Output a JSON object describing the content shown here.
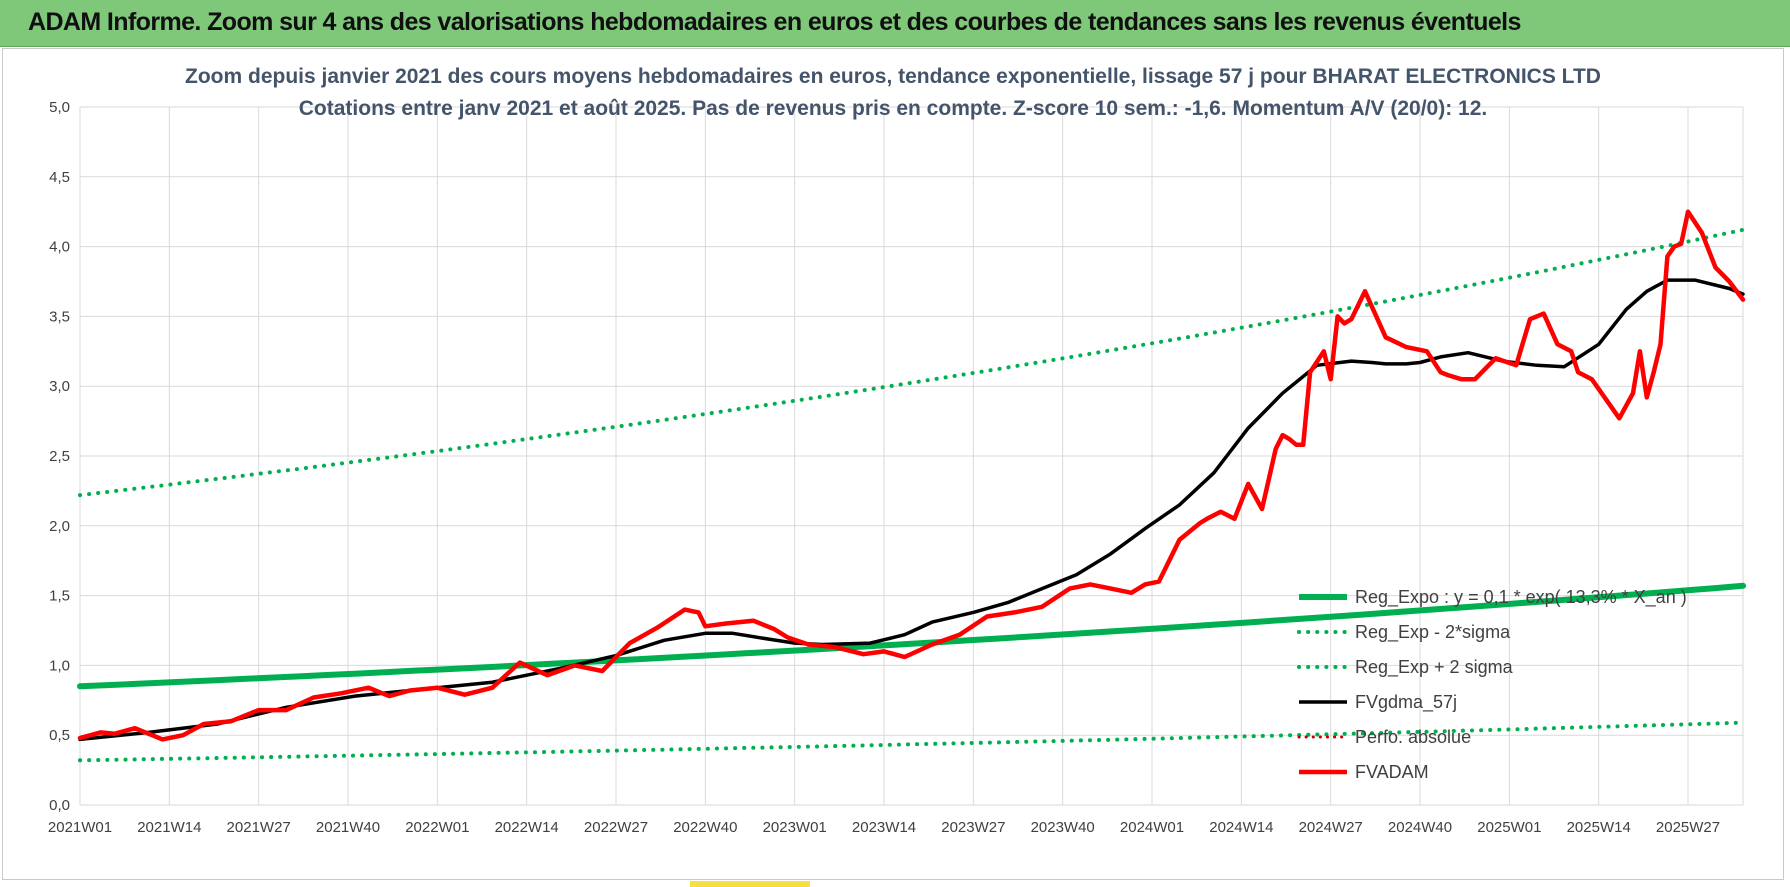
{
  "banner": {
    "title": "ADAM Informe. Zoom sur 4 ans des valorisations hebdomadaires en euros et des courbes de tendances sans les revenus éventuels"
  },
  "colors": {
    "banner_bg": "#7fc87a",
    "regression": "#00b050",
    "band": "#00b050",
    "smoothed": "#000000",
    "price": "#ff0000",
    "perfo": "#c00000",
    "grid": "#d9d9d9"
  },
  "chart_data": {
    "type": "line",
    "title_lines": [
      "Zoom depuis janvier 2021 des cours moyens hebdomadaires en euros, tendance exponentielle, lissage 57 j pour BHARAT ELECTRONICS LTD",
      "Cotations entre janv 2021 et août 2025. Pas de revenus pris en compte. Z-score 10 sem.: -1,6. Momentum A/V (20/0): 12."
    ],
    "x_tick_labels": [
      "2021W01",
      "2021W14",
      "2021W27",
      "2021W40",
      "2022W01",
      "2022W14",
      "2022W27",
      "2022W40",
      "2023W01",
      "2023W14",
      "2023W27",
      "2023W40",
      "2024W01",
      "2024W14",
      "2024W27",
      "2024W40",
      "2025W01",
      "2025W14",
      "2025W27"
    ],
    "y_tick_labels": [
      "0,0",
      "0,5",
      "1,0",
      "1,5",
      "2,0",
      "2,5",
      "3,0",
      "3,5",
      "4,0",
      "4,5",
      "5,0"
    ],
    "ylim": [
      0,
      5
    ],
    "x_range_weeks": [
      0,
      242
    ],
    "grid": true,
    "legend_position": "bottom-right",
    "legend": [
      {
        "label": "Reg_Expo : y = 0,1 * exp( 13,3% * X_an )",
        "style": "solid-thick",
        "color": "#00b050"
      },
      {
        "label": "Reg_Exp - 2*sigma",
        "style": "dotted",
        "color": "#00b050"
      },
      {
        "label": "Reg_Exp + 2 sigma",
        "style": "dotted",
        "color": "#00b050"
      },
      {
        "label": "FVgdma_57j",
        "style": "solid",
        "color": "#000000"
      },
      {
        "label": "Perfo. absolue",
        "style": "dotted",
        "color": "#c00000"
      },
      {
        "label": "FVADAM",
        "style": "solid-thick",
        "color": "#ff0000"
      }
    ],
    "series": [
      {
        "name": "Reg_Expo : y = 0,1 * exp( 13,3% * X_an )",
        "x_weeks": [
          0,
          242
        ],
        "y": [
          0.85,
          1.57
        ]
      },
      {
        "name": "Reg_Exp - 2*sigma",
        "x_weeks": [
          0,
          242
        ],
        "y": [
          0.32,
          0.59
        ]
      },
      {
        "name": "Reg_Exp + 2 sigma",
        "x_weeks": [
          0,
          242
        ],
        "y": [
          2.22,
          4.12
        ]
      },
      {
        "name": "FVgdma_57j",
        "x_weeks": [
          0,
          10,
          20,
          30,
          40,
          52,
          60,
          70,
          78,
          85,
          91,
          95,
          100,
          104,
          108,
          115,
          120,
          124,
          130,
          135,
          140,
          145,
          150,
          155,
          160,
          165,
          170,
          175,
          180,
          185,
          188,
          190,
          193,
          195,
          198,
          202,
          207,
          212,
          216,
          221,
          225,
          228,
          231,
          235,
          240,
          242
        ],
        "y": [
          0.47,
          0.52,
          0.58,
          0.7,
          0.78,
          0.84,
          0.88,
          0.98,
          1.07,
          1.18,
          1.23,
          1.23,
          1.19,
          1.16,
          1.15,
          1.16,
          1.22,
          1.31,
          1.38,
          1.45,
          1.55,
          1.65,
          1.8,
          1.98,
          2.15,
          2.38,
          2.7,
          2.95,
          3.15,
          3.18,
          3.17,
          3.16,
          3.16,
          3.17,
          3.21,
          3.24,
          3.18,
          3.15,
          3.14,
          3.3,
          3.55,
          3.68,
          3.76,
          3.76,
          3.7,
          3.66
        ]
      },
      {
        "name": "FVADAM",
        "x_weeks": [
          0,
          3,
          5,
          8,
          12,
          15,
          18,
          22,
          26,
          30,
          34,
          38,
          42,
          45,
          48,
          52,
          56,
          60,
          64,
          68,
          72,
          76,
          80,
          84,
          88,
          90,
          91,
          94,
          98,
          101,
          103,
          106,
          110,
          114,
          117,
          120,
          124,
          128,
          132,
          136,
          140,
          144,
          147,
          150,
          153,
          155,
          157,
          160,
          163,
          164,
          166,
          168,
          170,
          172,
          174,
          175,
          176,
          177,
          178,
          179,
          181,
          182,
          183,
          184,
          185,
          187,
          190,
          193,
          196,
          198,
          199,
          201,
          203,
          206,
          209,
          211,
          213,
          215,
          217,
          218,
          220,
          224,
          226,
          227,
          228,
          229,
          230,
          231,
          232,
          233,
          234,
          236,
          238,
          240,
          242
        ],
        "y": [
          0.48,
          0.52,
          0.51,
          0.55,
          0.47,
          0.5,
          0.58,
          0.6,
          0.68,
          0.68,
          0.77,
          0.8,
          0.84,
          0.78,
          0.82,
          0.84,
          0.79,
          0.84,
          1.02,
          0.93,
          1.0,
          0.96,
          1.16,
          1.27,
          1.4,
          1.38,
          1.28,
          1.3,
          1.32,
          1.26,
          1.2,
          1.15,
          1.13,
          1.08,
          1.1,
          1.06,
          1.15,
          1.22,
          1.35,
          1.38,
          1.42,
          1.55,
          1.58,
          1.55,
          1.52,
          1.58,
          1.6,
          1.9,
          2.02,
          2.05,
          2.1,
          2.05,
          2.3,
          2.12,
          2.55,
          2.65,
          2.62,
          2.58,
          2.58,
          3.1,
          3.25,
          3.05,
          3.5,
          3.45,
          3.48,
          3.68,
          3.35,
          3.28,
          3.25,
          3.1,
          3.08,
          3.05,
          3.05,
          3.2,
          3.15,
          3.48,
          3.52,
          3.3,
          3.25,
          3.1,
          3.05,
          2.77,
          2.95,
          3.25,
          2.92,
          3.1,
          3.3,
          3.93,
          4.0,
          4.02,
          4.25,
          4.1,
          3.85,
          3.75,
          3.62
        ]
      },
      {
        "name": "Perfo. absolue",
        "x_weeks": [],
        "y": []
      }
    ]
  }
}
